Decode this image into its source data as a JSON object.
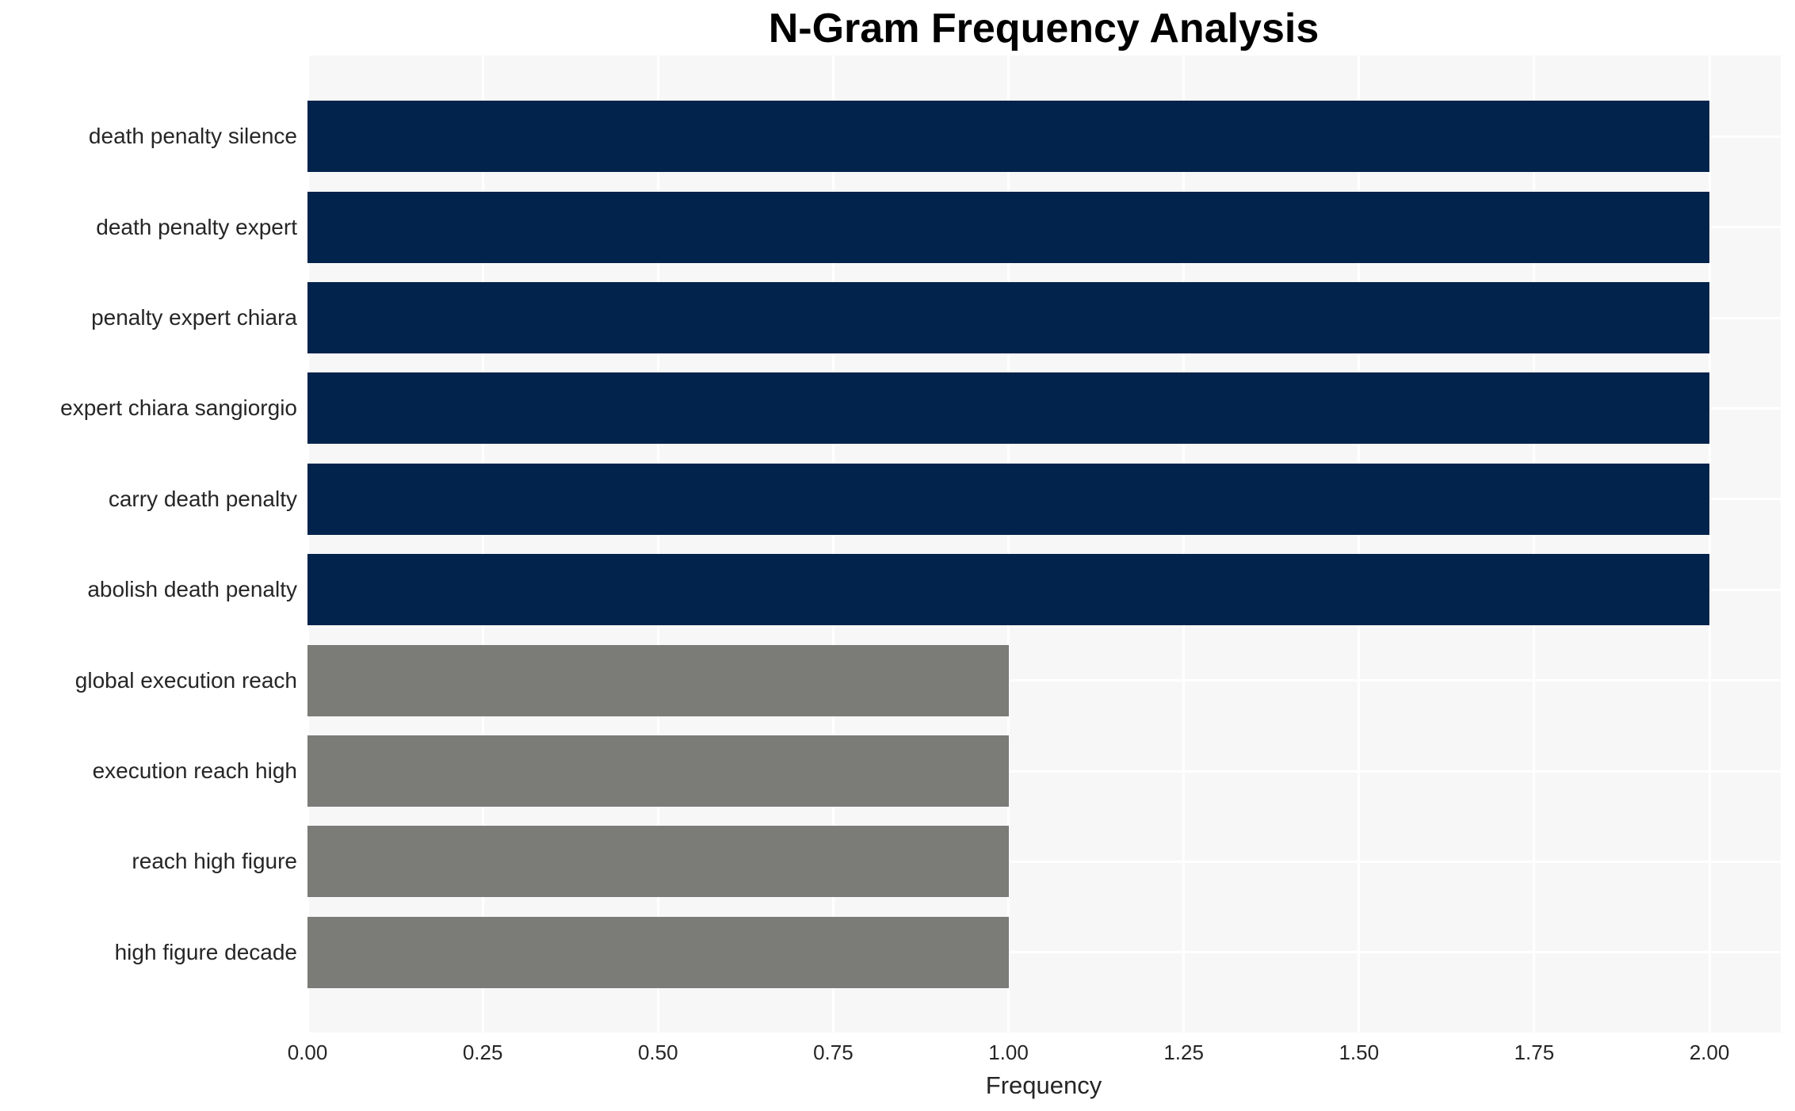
{
  "chart_data": {
    "type": "bar",
    "orientation": "horizontal",
    "title": "N-Gram Frequency Analysis",
    "xlabel": "Frequency",
    "ylabel": "",
    "categories": [
      "death penalty silence",
      "death penalty expert",
      "penalty expert chiara",
      "expert chiara sangiorgio",
      "carry death penalty",
      "abolish death penalty",
      "global execution reach",
      "execution reach high",
      "reach high figure",
      "high figure decade"
    ],
    "values": [
      2,
      2,
      2,
      2,
      2,
      2,
      1,
      1,
      1,
      1
    ],
    "bar_colors": [
      "#02234c",
      "#02234c",
      "#02234c",
      "#02234c",
      "#02234c",
      "#02234c",
      "#7b7b78",
      "#7b7b78",
      "#7b7b78",
      "#7b7b78"
    ],
    "xlim": [
      0,
      2.1
    ],
    "xticks": [
      0.0,
      0.25,
      0.5,
      0.75,
      1.0,
      1.25,
      1.5,
      1.75,
      2.0
    ],
    "xtick_labels": [
      "0.00",
      "0.25",
      "0.50",
      "0.75",
      "1.00",
      "1.25",
      "1.50",
      "1.75",
      "2.00"
    ],
    "grid": true,
    "legend": false,
    "colors": {
      "highlight_bar": "#02234c",
      "normal_bar": "#7b7b78",
      "plot_background": "#f7f7f7",
      "grid_line": "#ffffff",
      "tick_text": "#262626",
      "title_text": "#000000"
    }
  }
}
